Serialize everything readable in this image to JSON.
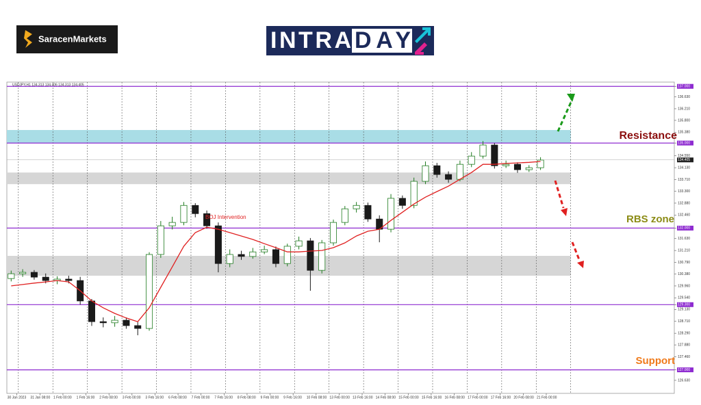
{
  "header": {
    "brand": "SaracenMarkets",
    "logo_left": "INTRA",
    "logo_right": "DAY"
  },
  "chart_data": {
    "type": "candlestick",
    "title": "USDJPY,H1  134.313 134.406 134.313 134.405",
    "up_color": "#1e7a1e",
    "down_color": "#1a1a1a",
    "ma": {
      "color": "#e02020",
      "values": [
        129.96,
        130.01,
        130.06,
        130.1,
        130.15,
        130.1,
        129.79,
        129.43,
        129.19,
        128.99,
        128.83,
        128.7,
        129.19,
        129.91,
        130.63,
        131.36,
        131.84,
        132.03,
        131.96,
        131.84,
        131.72,
        131.6,
        131.45,
        131.31,
        131.16,
        131.16,
        131.19,
        131.21,
        131.31,
        131.48,
        131.72,
        131.89,
        131.96,
        132.27,
        132.56,
        132.85,
        133.09,
        133.29,
        133.48,
        133.72,
        133.96,
        134.25,
        134.25,
        134.28,
        134.3,
        134.32,
        134.35
      ]
    },
    "x": [
      -4,
      4,
      12,
      20,
      28,
      36,
      44,
      52,
      60,
      68,
      76,
      84,
      92,
      100,
      108,
      116,
      124,
      132,
      140,
      148,
      156,
      164,
      172,
      180,
      188,
      196,
      204,
      212,
      220,
      228,
      236,
      244,
      252,
      260,
      268,
      276,
      284,
      292,
      300,
      308,
      316,
      324,
      332,
      340,
      348,
      356,
      364
    ],
    "open": [
      130.22,
      130.39,
      130.44,
      130.27,
      130.15,
      130.2,
      130.15,
      129.43,
      128.7,
      128.66,
      128.75,
      128.56,
      128.46,
      131.07,
      132.08,
      132.2,
      132.8,
      132.51,
      132.08,
      130.75,
      131.07,
      131.0,
      131.16,
      131.24,
      130.75,
      131.36,
      131.55,
      130.51,
      131.48,
      132.2,
      132.68,
      132.8,
      132.32,
      131.96,
      133.05,
      132.8,
      133.65,
      134.2,
      133.89,
      133.72,
      134.25,
      134.54,
      134.93,
      134.2,
      134.25,
      134.06,
      134.13
    ],
    "high": [
      130.5,
      130.55,
      130.52,
      130.4,
      130.3,
      130.32,
      130.28,
      129.5,
      128.85,
      128.9,
      128.85,
      128.68,
      131.15,
      132.25,
      132.4,
      132.92,
      132.88,
      132.62,
      132.2,
      131.25,
      131.2,
      131.3,
      131.38,
      131.35,
      131.45,
      131.7,
      131.65,
      131.58,
      132.3,
      132.78,
      132.92,
      132.9,
      132.45,
      133.2,
      133.15,
      133.78,
      134.35,
      134.3,
      134.0,
      134.38,
      134.68,
      135.07,
      135.0,
      134.38,
      134.32,
      134.22,
      134.5
    ],
    "low": [
      130.12,
      130.28,
      130.18,
      130.05,
      130.02,
      130.05,
      129.3,
      128.55,
      128.5,
      128.52,
      128.45,
      128.22,
      128.38,
      130.95,
      131.95,
      132.1,
      132.38,
      131.98,
      130.44,
      130.62,
      130.88,
      130.92,
      131.08,
      130.62,
      130.65,
      131.25,
      129.79,
      130.4,
      131.38,
      132.1,
      132.55,
      132.22,
      131.5,
      131.85,
      132.68,
      132.7,
      133.55,
      133.78,
      133.6,
      133.65,
      134.15,
      134.45,
      134.1,
      134.12,
      133.95,
      133.98,
      134.05
    ],
    "close": [
      130.39,
      130.44,
      130.27,
      130.15,
      130.2,
      130.15,
      129.43,
      128.7,
      128.66,
      128.75,
      128.56,
      128.46,
      131.07,
      132.08,
      132.2,
      132.8,
      132.51,
      132.08,
      130.75,
      131.07,
      131.0,
      131.16,
      131.24,
      130.75,
      131.36,
      131.55,
      130.51,
      131.48,
      132.2,
      132.68,
      132.8,
      132.32,
      131.96,
      133.05,
      132.8,
      133.65,
      134.2,
      133.89,
      133.72,
      134.25,
      134.54,
      134.93,
      134.2,
      134.25,
      134.06,
      134.13,
      134.4
    ],
    "xlim": [
      -7,
      457
    ],
    "ylim": [
      126.17,
      137.15
    ],
    "xgrid": [
      1,
      25,
      49,
      73,
      97,
      121,
      145,
      169,
      193,
      217,
      241,
      265,
      289,
      313,
      337,
      361,
      385
    ],
    "xticks": [
      {
        "value": 0,
        "label": "30 Jan 2023"
      },
      {
        "value": 16,
        "label": "31 Jan 08:00"
      },
      {
        "value": 32,
        "label": "1 Feb 00:00"
      },
      {
        "value": 48,
        "label": "1 Feb 16:00"
      },
      {
        "value": 64,
        "label": "2 Feb 08:00"
      },
      {
        "value": 80,
        "label": "3 Feb 00:00"
      },
      {
        "value": 96,
        "label": "3 Feb 16:00"
      },
      {
        "value": 112,
        "label": "6 Feb 08:00"
      },
      {
        "value": 128,
        "label": "7 Feb 00:00"
      },
      {
        "value": 144,
        "label": "7 Feb 16:00"
      },
      {
        "value": 160,
        "label": "8 Feb 08:00"
      },
      {
        "value": 176,
        "label": "9 Feb 00:00"
      },
      {
        "value": 192,
        "label": "9 Feb 16:00"
      },
      {
        "value": 208,
        "label": "10 Feb 08:00"
      },
      {
        "value": 224,
        "label": "13 Feb 00:00"
      },
      {
        "value": 240,
        "label": "13 Feb 16:00"
      },
      {
        "value": 256,
        "label": "14 Feb 08:00"
      },
      {
        "value": 272,
        "label": "15 Feb 00:00"
      },
      {
        "value": 288,
        "label": "15 Feb 16:00"
      },
      {
        "value": 304,
        "label": "16 Feb 08:00"
      },
      {
        "value": 320,
        "label": "17 Feb 00:00"
      },
      {
        "value": 336,
        "label": "17 Feb 16:00"
      },
      {
        "value": 352,
        "label": "20 Feb 08:00"
      },
      {
        "value": 368,
        "label": "21 Feb 00:00"
      }
    ],
    "yticks": [
      {
        "value": 137,
        "label": "137.000"
      },
      {
        "value": 136.63,
        "label": "136.630"
      },
      {
        "value": 136.21,
        "label": "136.210"
      },
      {
        "value": 135.8,
        "label": "135.800"
      },
      {
        "value": 135.38,
        "label": "135.380"
      },
      {
        "value": 135,
        "label": "135.000"
      },
      {
        "value": 134.55,
        "label": "134.550"
      },
      {
        "value": 134.13,
        "label": "134.130"
      },
      {
        "value": 133.71,
        "label": "133.710"
      },
      {
        "value": 133.3,
        "label": "133.300"
      },
      {
        "value": 132.88,
        "label": "132.880"
      },
      {
        "value": 132.46,
        "label": "132.460"
      },
      {
        "value": 132,
        "label": "132.000"
      },
      {
        "value": 131.63,
        "label": "131.630"
      },
      {
        "value": 131.21,
        "label": "131.210"
      },
      {
        "value": 130.79,
        "label": "130.790"
      },
      {
        "value": 130.38,
        "label": "130.380"
      },
      {
        "value": 129.96,
        "label": "129.960"
      },
      {
        "value": 129.54,
        "label": "129.540"
      },
      {
        "value": 129.3,
        "label": "129.300"
      },
      {
        "value": 129.13,
        "label": "129.130"
      },
      {
        "value": 128.71,
        "label": "128.710"
      },
      {
        "value": 128.29,
        "label": "128.290"
      },
      {
        "value": 127.88,
        "label": "127.880"
      },
      {
        "value": 127.46,
        "label": "127.460"
      },
      {
        "value": 127,
        "label": "127.000"
      },
      {
        "value": 126.63,
        "label": "126.630"
      }
    ],
    "levels": {
      "color": "#8e2bd0",
      "values": [
        137,
        135,
        132,
        129.3,
        127
      ]
    },
    "last": {
      "value": 134.405,
      "label": "134.405"
    },
    "zones": [
      {
        "from": 135,
        "to": 135.46,
        "color": "#a9dde6"
      },
      {
        "from": 133.55,
        "to": 133.96,
        "color": "#d6d6d6"
      },
      {
        "from": 130.32,
        "to": 131.02,
        "color": "#d6d6d6"
      }
    ],
    "zone_end": 385,
    "annotations": [
      "Resistance",
      "RBS zone",
      "Support",
      "BOJ Intervention"
    ]
  }
}
